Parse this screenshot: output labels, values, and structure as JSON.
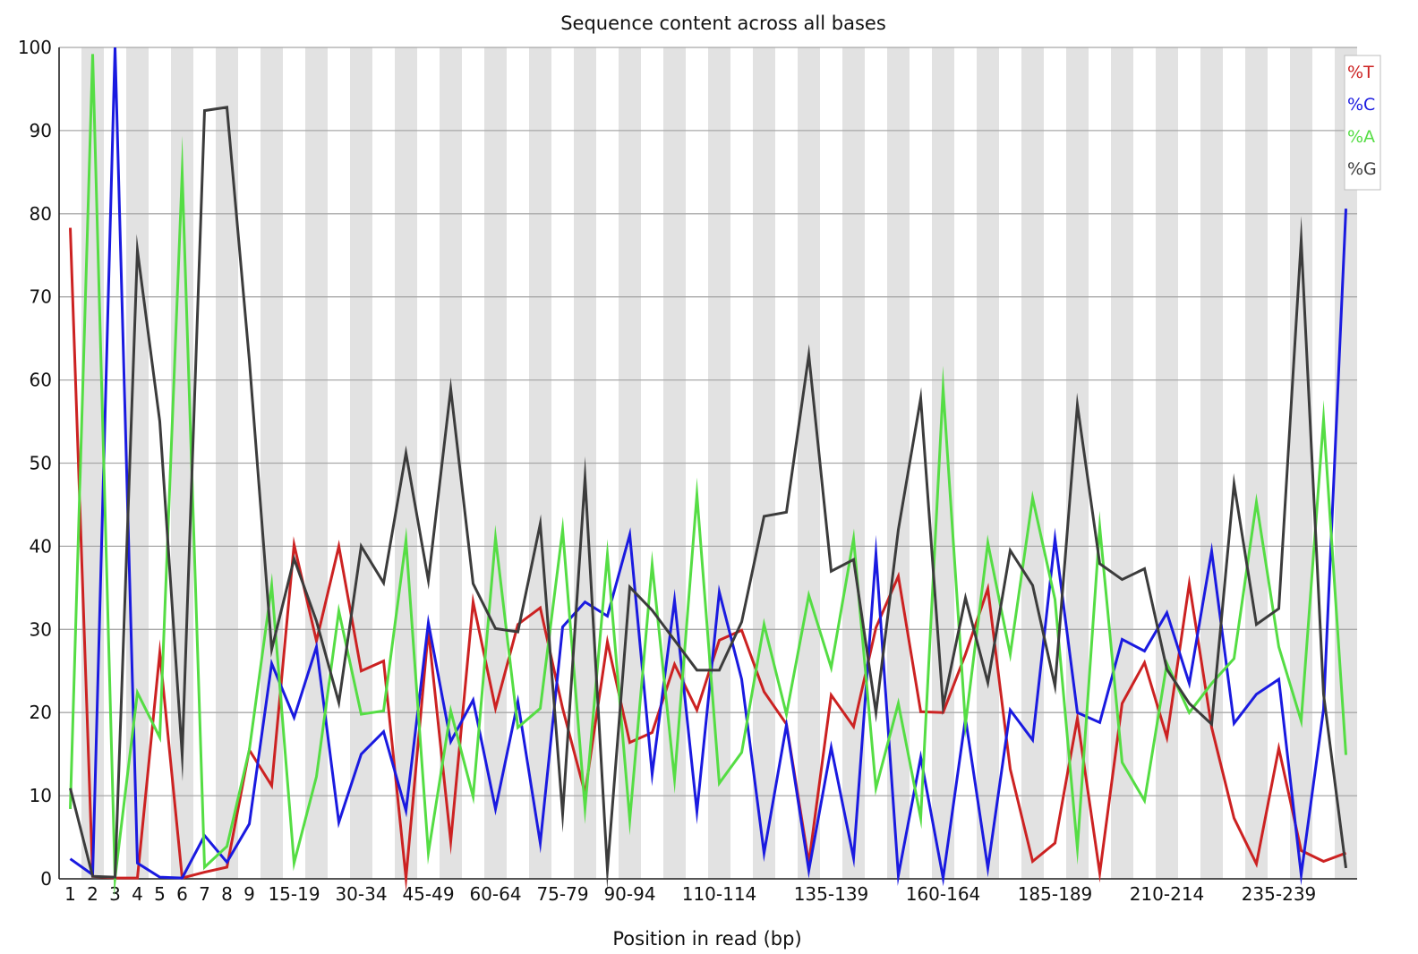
{
  "chart_data": {
    "type": "line",
    "title": "Sequence content across all bases",
    "xlabel": "Position in read (bp)",
    "ylabel": "",
    "ylim": [
      0,
      100
    ],
    "yticks": [
      0,
      10,
      20,
      30,
      40,
      50,
      60,
      70,
      80,
      90,
      100
    ],
    "x_tick_labels": [
      "1",
      "2",
      "3",
      "4",
      "5",
      "6",
      "7",
      "8",
      "9",
      "15-19",
      "30-34",
      "45-49",
      "60-64",
      "75-79",
      "90-94",
      "110-114",
      "135-139",
      "160-164",
      "185-189",
      "210-214",
      "235-239"
    ],
    "x_tick_positions": [
      1,
      2,
      3,
      4,
      5,
      6,
      7,
      8,
      9,
      11,
      14,
      17,
      20,
      23,
      26,
      30,
      35,
      40,
      45,
      50,
      55
    ],
    "n_points": 58,
    "grid": true,
    "legend_position": "top-right",
    "series": [
      {
        "name": "%T",
        "color": "#cc2222",
        "values": [
          78.3,
          0.3,
          0.1,
          0.1,
          27.2,
          0.1,
          0.8,
          1.4,
          15.5,
          11.2,
          40.2,
          28.6,
          40,
          25,
          26.2,
          0.1,
          29.9,
          4.5,
          33.3,
          20.5,
          30.6,
          32.6,
          20.5,
          10.3,
          28.5,
          16.4,
          17.6,
          25.8,
          20.3,
          28.7,
          29.9,
          22.5,
          18.6,
          1.9,
          22.1,
          18.3,
          30.2,
          36.4,
          20.1,
          20,
          27,
          34.9,
          13.2,
          2.1,
          4.3,
          19.3,
          0.7,
          21.1,
          26,
          17,
          35.5,
          18.2,
          7.3,
          1.8,
          15.7,
          3.4,
          2.1,
          3.1
        ]
      },
      {
        "name": "%C",
        "color": "#1a1ae0",
        "values": [
          2.4,
          0.5,
          100,
          1.9,
          0.2,
          0.1,
          5.2,
          2,
          6.6,
          25.9,
          19.4,
          27.9,
          6.8,
          15,
          17.7,
          8.2,
          30.8,
          16.5,
          21.5,
          8.4,
          21.3,
          4.3,
          30.3,
          33.3,
          31.6,
          41.4,
          12.6,
          33.5,
          8.1,
          34.5,
          24,
          3.1,
          18.5,
          1,
          15.8,
          2.5,
          39.1,
          0.4,
          14.6,
          0.1,
          19.3,
          1.3,
          20.3,
          16.7,
          40.9,
          20,
          18.8,
          28.8,
          27.4,
          32,
          23.5,
          39.4,
          18.7,
          22.2,
          24,
          0.5,
          20.4,
          80.6
        ]
      },
      {
        "name": "%A",
        "color": "#55dd44",
        "values": [
          8.4,
          99.2,
          0.1,
          22.4,
          17,
          84.9,
          1.4,
          3.9,
          15.5,
          35.3,
          1.9,
          12.3,
          32.2,
          19.8,
          20.2,
          40.7,
          3.1,
          20.2,
          9.9,
          41,
          18.2,
          20.5,
          42,
          8.5,
          39,
          7.1,
          37.8,
          12,
          46.2,
          11.5,
          15.2,
          30.6,
          19.8,
          34.1,
          25.4,
          40.9,
          10.9,
          21.1,
          7.3,
          59,
          18.6,
          40.4,
          27,
          45.8,
          33.6,
          3.7,
          42.3,
          14,
          9.4,
          25.9,
          20,
          23.5,
          26.5,
          45.3,
          27.9,
          19,
          55.3,
          14.9
        ]
      },
      {
        "name": "%G",
        "color": "#3c3c3c",
        "values": [
          10.9,
          0.3,
          0.2,
          75.6,
          55,
          14.9,
          92.4,
          92.8,
          62.4,
          27.6,
          38.5,
          31,
          21.2,
          40,
          35.6,
          51.2,
          35.9,
          58.9,
          35.5,
          30.1,
          29.7,
          42.7,
          7.8,
          48.2,
          1.1,
          35.1,
          32.3,
          28.7,
          25.1,
          25.1,
          30.9,
          43.6,
          44.1,
          63,
          37,
          38.4,
          20,
          42,
          57.8,
          20.8,
          33.8,
          23.6,
          39.5,
          35.3,
          23.2,
          57,
          37.9,
          36,
          37.3,
          25.2,
          21.1,
          18.6,
          47.5,
          30.6,
          32.5,
          76.8,
          22.2,
          1.3
        ]
      }
    ]
  }
}
